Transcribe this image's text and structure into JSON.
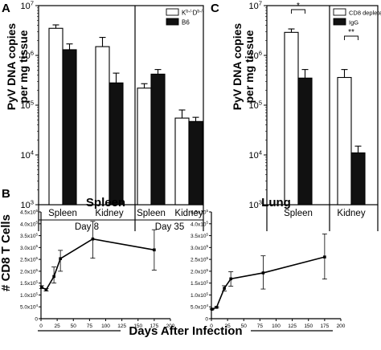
{
  "panels": {
    "A": {
      "label": "A"
    },
    "B": {
      "label": "B"
    },
    "C": {
      "label": "C"
    }
  },
  "chart_data": [
    {
      "id": "A",
      "type": "bar",
      "ylabel_line1": "PyV DNA copies",
      "ylabel_line2": "per mg tissue",
      "yscale": "log",
      "ylim": [
        1000,
        10000000
      ],
      "yticks": [
        {
          "value": 1000,
          "base": "10",
          "exp": "3"
        },
        {
          "value": 10000,
          "base": "10",
          "exp": "4"
        },
        {
          "value": 100000,
          "base": "10",
          "exp": "5"
        },
        {
          "value": 1000000,
          "base": "10",
          "exp": "6"
        },
        {
          "value": 10000000,
          "base": "10",
          "exp": "7"
        }
      ],
      "legend": {
        "placement": "top-right",
        "entries": [
          {
            "label_main": "K",
            "label_sup1": "b-/-",
            "label_mid": "D",
            "label_sup2": "b-/-",
            "color": "#ffffff"
          },
          {
            "label_main": "B6",
            "color": "#111111"
          }
        ]
      },
      "groups": [
        {
          "label": "Spleen"
        },
        {
          "label": "Kidney"
        },
        {
          "label": "Spleen"
        },
        {
          "label": "Kidney"
        }
      ],
      "sections": [
        {
          "label": "Day 8"
        },
        {
          "label": "Day 35"
        }
      ],
      "series": [
        {
          "color": "#ffffff",
          "values": [
            3500000,
            1500000,
            220000,
            55000
          ],
          "errors": [
            4100000,
            2300000,
            270000,
            80000
          ]
        },
        {
          "color": "#111111",
          "values": [
            1300000,
            280000,
            420000,
            47000
          ],
          "errors": [
            1700000,
            440000,
            520000,
            57000
          ]
        }
      ]
    },
    {
      "id": "C",
      "type": "bar",
      "ylabel_line1": "PyV DNA copies",
      "ylabel_line2": "per mg tissue",
      "yscale": "log",
      "ylim": [
        1000,
        10000000
      ],
      "yticks": [
        {
          "value": 1000,
          "base": "10",
          "exp": "3"
        },
        {
          "value": 10000,
          "base": "10",
          "exp": "4"
        },
        {
          "value": 100000,
          "base": "10",
          "exp": "5"
        },
        {
          "value": 1000000,
          "base": "10",
          "exp": "6"
        },
        {
          "value": 10000000,
          "base": "10",
          "exp": "7"
        }
      ],
      "legend": {
        "placement": "top-right",
        "entries": [
          {
            "label": "CD8 depleted",
            "color": "#ffffff"
          },
          {
            "label": "IgG",
            "color": "#111111"
          }
        ]
      },
      "groups": [
        {
          "label": "Spleen"
        },
        {
          "label": "Kidney"
        }
      ],
      "series": [
        {
          "color": "#ffffff",
          "values": [
            2900000,
            360000
          ],
          "errors": [
            3400000,
            520000
          ]
        },
        {
          "color": "#111111",
          "values": [
            350000,
            11000
          ],
          "errors": [
            520000,
            15000
          ]
        }
      ],
      "significance": [
        {
          "label": "*",
          "group": 0
        },
        {
          "label": "**",
          "group": 1
        }
      ]
    },
    {
      "id": "B-spleen",
      "type": "line",
      "title": "Spleen",
      "xlim": [
        0,
        200
      ],
      "xticks": [
        0,
        25,
        50,
        75,
        100,
        125,
        150,
        175,
        200
      ],
      "ylim": [
        0,
        450000
      ],
      "yticks": [
        {
          "value": 0,
          "label": "0"
        },
        {
          "value": 50000,
          "label": "5.0x10",
          "sup": "4"
        },
        {
          "value": 100000,
          "label": "1.0x10",
          "sup": "5"
        },
        {
          "value": 150000,
          "label": "1.5x10",
          "sup": "5"
        },
        {
          "value": 200000,
          "label": "2.0x10",
          "sup": "5"
        },
        {
          "value": 250000,
          "label": "2.5x10",
          "sup": "5"
        },
        {
          "value": 300000,
          "label": "3.0x10",
          "sup": "5"
        },
        {
          "value": 350000,
          "label": "3.5x10",
          "sup": "5"
        },
        {
          "value": 400000,
          "label": "4.0x10",
          "sup": "5"
        },
        {
          "value": 450000,
          "label": "4.5x10",
          "sup": "5"
        }
      ],
      "series": [
        {
          "x": [
            1,
            8,
            20,
            30,
            80,
            175
          ],
          "y": [
            133000,
            122000,
            178000,
            253000,
            336000,
            290000
          ],
          "err_low": [
            127000,
            117000,
            150000,
            200000,
            255000,
            205000
          ],
          "err_high": [
            139000,
            127000,
            218000,
            288000,
            410000,
            375000
          ]
        }
      ]
    },
    {
      "id": "B-lung",
      "type": "line",
      "title": "Lung",
      "xlim": [
        0,
        200
      ],
      "xticks": [
        0,
        25,
        50,
        75,
        100,
        125,
        150,
        175,
        200
      ],
      "ylim": [
        0,
        450000
      ],
      "yticks": [
        {
          "value": 0,
          "label": "0"
        },
        {
          "value": 50000,
          "label": "5.0x10",
          "sup": "4"
        },
        {
          "value": 100000,
          "label": "1.0x10",
          "sup": "5"
        },
        {
          "value": 150000,
          "label": "1.5x10",
          "sup": "5"
        },
        {
          "value": 200000,
          "label": "2.0x10",
          "sup": "5"
        },
        {
          "value": 250000,
          "label": "2.5x10",
          "sup": "5"
        },
        {
          "value": 300000,
          "label": "3.0x10",
          "sup": "5"
        },
        {
          "value": 350000,
          "label": "3.5x10",
          "sup": "5"
        },
        {
          "value": 400000,
          "label": "4.0x10",
          "sup": "5"
        },
        {
          "value": 450000,
          "label": "4.5x10",
          "sup": "5"
        }
      ],
      "series": [
        {
          "x": [
            1,
            8,
            20,
            30,
            80,
            175
          ],
          "y": [
            40000,
            48000,
            128000,
            168000,
            193000,
            260000
          ],
          "err_low": [
            38000,
            45000,
            117000,
            137000,
            125000,
            167000
          ],
          "err_high": [
            43000,
            51000,
            139000,
            198000,
            265000,
            357000
          ]
        }
      ]
    }
  ],
  "shared": {
    "b_ylabel": "# CD8 T Cells",
    "b_xlabel": "Days After Infection"
  }
}
